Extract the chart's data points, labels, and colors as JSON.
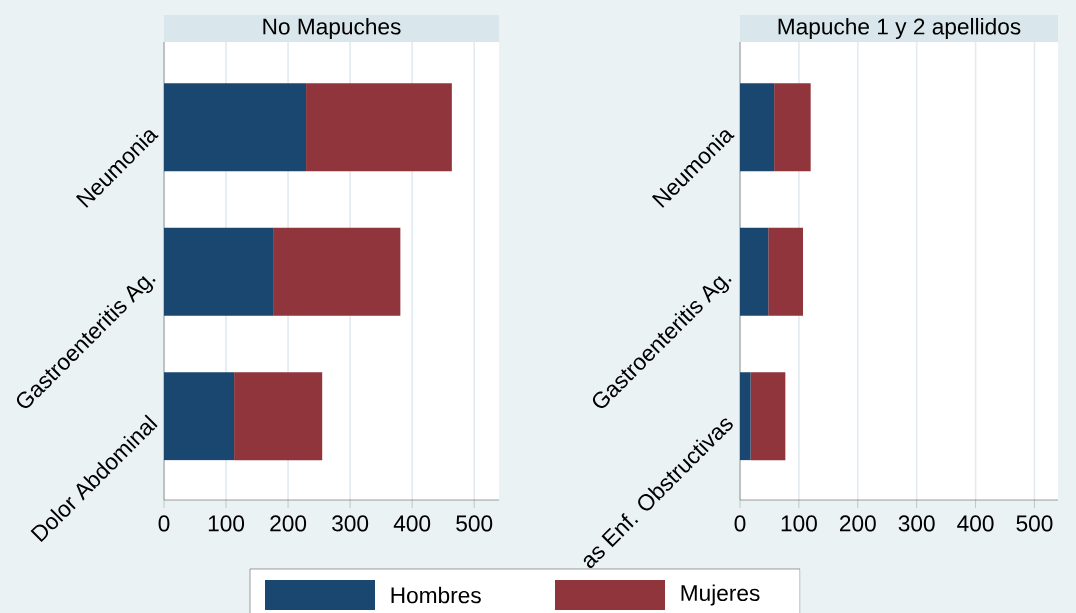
{
  "chart_data": [
    {
      "type": "bar",
      "orientation": "horizontal",
      "stacked": true,
      "title": "No Mapuches",
      "categories": [
        "Neumonia",
        "Gastroenteritis Ag.",
        "Dolor Abdominal"
      ],
      "series": [
        {
          "name": "Hombres",
          "color": "#1a476f",
          "values": [
            229,
            177,
            113
          ]
        },
        {
          "name": "Mujeres",
          "color": "#90353b",
          "values": [
            235,
            204,
            142
          ]
        }
      ],
      "xlim": [
        0,
        540
      ],
      "xticks": [
        0,
        100,
        200,
        300,
        400,
        500
      ],
      "grid": "x",
      "legend": "bottom"
    },
    {
      "type": "bar",
      "orientation": "horizontal",
      "stacked": true,
      "title": "Mapuche 1 y 2 apellidos",
      "categories": [
        "Neumonia",
        "Gastroenteritis Ag.",
        "as Enf. Obstructivas"
      ],
      "series": [
        {
          "color": "#1a476f",
          "values": [
            58,
            48,
            18
          ]
        },
        {
          "color": "#90353b",
          "values": [
            62,
            59,
            59
          ]
        }
      ],
      "xlim": [
        0,
        540
      ],
      "xticks": [
        0,
        100,
        200,
        300,
        400,
        500
      ],
      "grid": "x"
    }
  ]
}
